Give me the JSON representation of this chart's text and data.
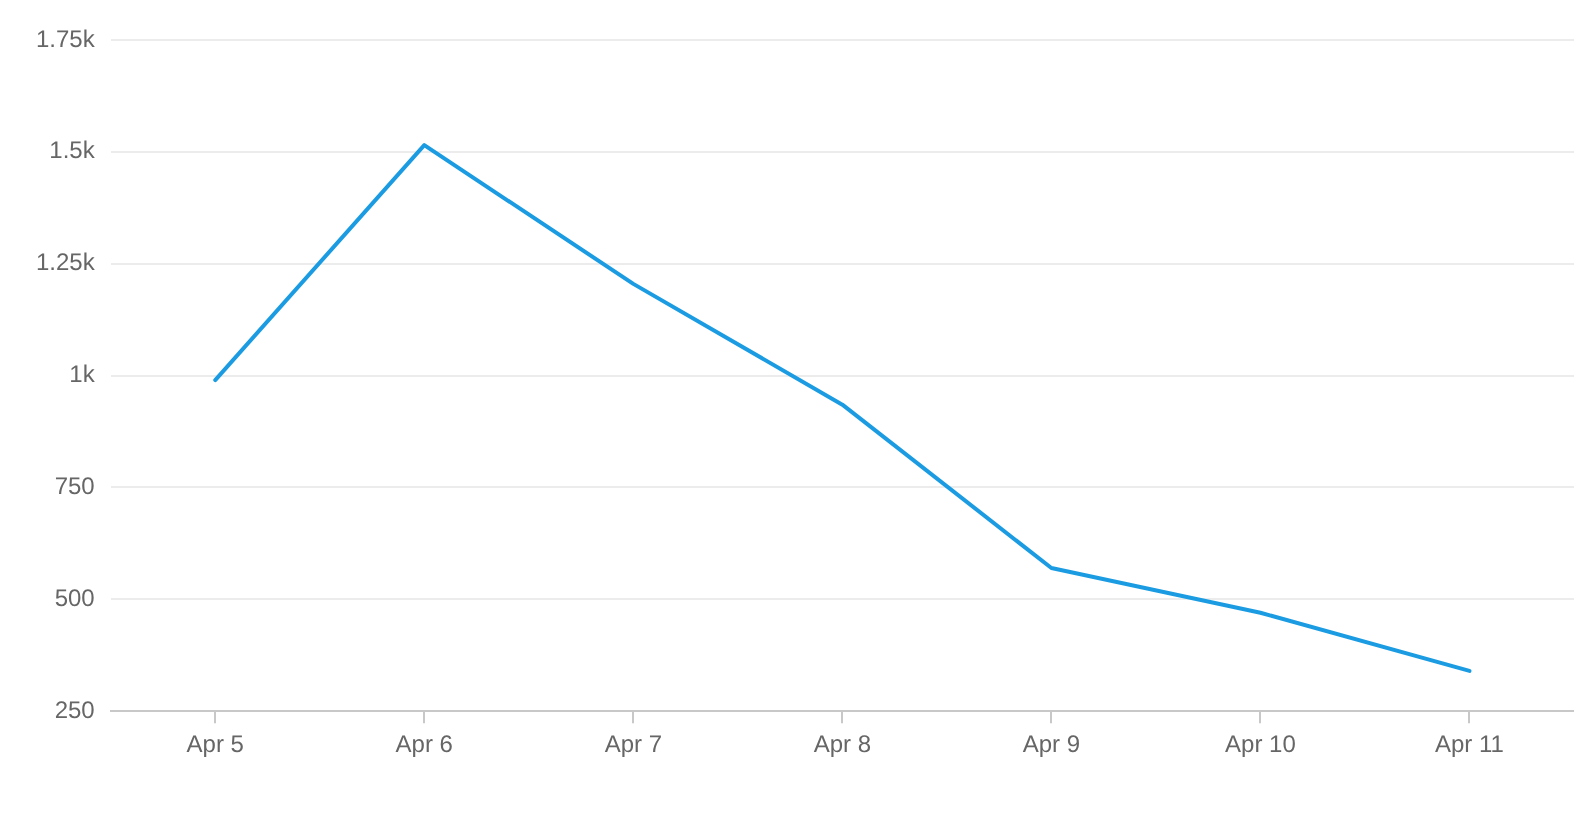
{
  "chart_data": {
    "type": "line",
    "categories": [
      "Apr 5",
      "Apr 6",
      "Apr 7",
      "Apr 8",
      "Apr 9",
      "Apr 10",
      "Apr 11"
    ],
    "series": [
      {
        "color": "#1b9ce2",
        "values": [
          990,
          1515,
          1205,
          935,
          570,
          470,
          340
        ]
      }
    ],
    "ylim": [
      250,
      1750
    ],
    "yticks": [
      250,
      500,
      750,
      {
        "value": 1000,
        "label": "1k"
      },
      {
        "value": 1250,
        "label": "1.25k"
      },
      {
        "value": 1500,
        "label": "1.5k"
      },
      {
        "value": 1750,
        "label": "1.75k"
      }
    ],
    "grid": "y",
    "legend": false,
    "marker": "none",
    "line_style": "solid"
  }
}
